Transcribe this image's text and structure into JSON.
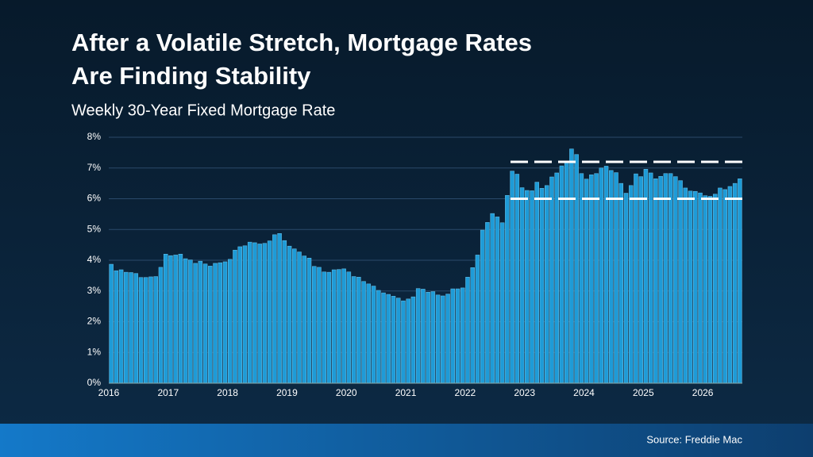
{
  "chart_data": {
    "type": "bar",
    "title": "After a Volatile Stretch, Mortgage Rates Are Finding Stability",
    "subtitle": "Weekly 30-Year Fixed Mortgage Rate",
    "source": "Source: Freddie Mac",
    "categories": [
      "2016",
      null,
      null,
      null,
      null,
      null,
      null,
      null,
      null,
      null,
      null,
      null,
      "2017",
      null,
      null,
      null,
      null,
      null,
      null,
      null,
      null,
      null,
      null,
      null,
      "2018",
      null,
      null,
      null,
      null,
      null,
      null,
      null,
      null,
      null,
      null,
      null,
      "2019",
      null,
      null,
      null,
      null,
      null,
      null,
      null,
      null,
      null,
      null,
      null,
      "2020",
      null,
      null,
      null,
      null,
      null,
      null,
      null,
      null,
      null,
      null,
      null,
      "2021",
      null,
      null,
      null,
      null,
      null,
      null,
      null,
      null,
      null,
      null,
      null,
      "2022",
      null,
      null,
      null,
      null,
      null,
      null,
      null,
      null,
      null,
      null,
      null,
      "2023",
      null,
      null,
      null,
      null,
      null,
      null,
      null,
      null,
      null,
      null,
      null,
      "2024",
      null,
      null,
      null,
      null,
      null,
      null,
      null,
      null,
      null,
      null,
      null,
      "2025",
      null,
      null,
      null,
      null,
      null,
      null,
      null,
      null,
      null,
      null,
      null,
      "2026",
      null,
      null,
      null,
      null,
      null,
      null,
      null
    ],
    "values": [
      3.87,
      3.66,
      3.69,
      3.61,
      3.6,
      3.57,
      3.44,
      3.44,
      3.46,
      3.47,
      3.77,
      4.2,
      4.15,
      4.17,
      4.2,
      4.05,
      4.01,
      3.9,
      3.97,
      3.88,
      3.81,
      3.9,
      3.92,
      3.95,
      4.03,
      4.33,
      4.44,
      4.47,
      4.59,
      4.57,
      4.53,
      4.55,
      4.63,
      4.83,
      4.87,
      4.64,
      4.46,
      4.37,
      4.27,
      4.14,
      4.07,
      3.8,
      3.77,
      3.62,
      3.61,
      3.69,
      3.7,
      3.72,
      3.62,
      3.47,
      3.45,
      3.31,
      3.23,
      3.16,
      3.02,
      2.94,
      2.89,
      2.83,
      2.77,
      2.68,
      2.74,
      2.81,
      3.08,
      3.06,
      2.96,
      2.98,
      2.87,
      2.84,
      2.9,
      3.07,
      3.07,
      3.1,
      3.45,
      3.76,
      4.17,
      4.98,
      5.23,
      5.52,
      5.41,
      5.22,
      6.11,
      6.9,
      6.8,
      6.36,
      6.27,
      6.26,
      6.54,
      6.34,
      6.43,
      6.71,
      6.84,
      7.07,
      7.2,
      7.62,
      7.44,
      6.82,
      6.64,
      6.78,
      6.82,
      7.0,
      7.06,
      6.92,
      6.85,
      6.5,
      6.18,
      6.43,
      6.81,
      6.72,
      6.96,
      6.84,
      6.65,
      6.73,
      6.82,
      6.82,
      6.72,
      6.59,
      6.35,
      6.25,
      6.24,
      6.19,
      6.1,
      6.08,
      6.15,
      6.35,
      6.3,
      6.4,
      6.5,
      6.65
    ],
    "color": "#1e9bd7",
    "ylim": [
      0,
      8
    ],
    "yticks": [
      {
        "value": 0,
        "label": "0%"
      },
      {
        "value": 1,
        "label": "1%"
      },
      {
        "value": 2,
        "label": "2%"
      },
      {
        "value": 3,
        "label": "3%"
      },
      {
        "value": 4,
        "label": "4%"
      },
      {
        "value": 5,
        "label": "5%"
      },
      {
        "value": 6,
        "label": "6%"
      },
      {
        "value": 7,
        "label": "7%"
      },
      {
        "value": 8,
        "label": "8%"
      }
    ],
    "reference_lines": [
      7.2,
      6
    ],
    "grid": true
  }
}
